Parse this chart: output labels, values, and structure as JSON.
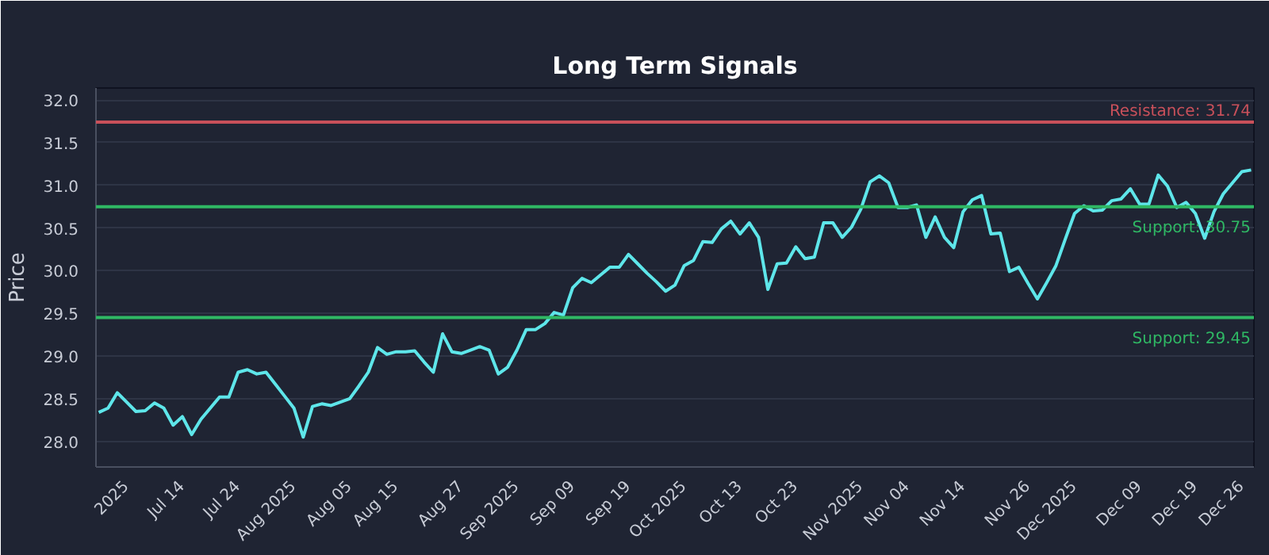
{
  "chart_data": {
    "type": "line",
    "title": "Long Term Signals",
    "ylabel": "Price",
    "categories": [
      null,
      null,
      null,
      "2025",
      null,
      null,
      null,
      null,
      null,
      "Jul 14",
      null,
      null,
      null,
      null,
      null,
      "Jul 24",
      null,
      null,
      null,
      null,
      null,
      "Aug 2025",
      null,
      null,
      null,
      null,
      null,
      "Aug 05",
      null,
      null,
      null,
      null,
      "Aug 15",
      null,
      null,
      null,
      null,
      null,
      null,
      "Aug 27",
      null,
      null,
      null,
      null,
      null,
      "Sep 2025",
      null,
      null,
      null,
      null,
      null,
      "Sep 09",
      null,
      null,
      null,
      null,
      null,
      "Sep 19",
      null,
      null,
      null,
      null,
      null,
      "Oct 2025",
      null,
      null,
      null,
      null,
      null,
      "Oct 13",
      null,
      null,
      null,
      null,
      null,
      "Oct 23",
      null,
      null,
      null,
      null,
      null,
      null,
      "Nov 2025",
      null,
      null,
      null,
      null,
      "Nov 04",
      null,
      null,
      null,
      null,
      null,
      "Nov 14",
      null,
      null,
      null,
      null,
      null,
      null,
      "Nov 26",
      null,
      null,
      null,
      null,
      "Dec 2025",
      null,
      null,
      null,
      null,
      null,
      null,
      "Dec 09",
      null,
      null,
      null,
      null,
      null,
      "Dec 19",
      null,
      null,
      null,
      null,
      "Dec 26",
      null
    ],
    "series": [
      {
        "color": "#5ee6ea",
        "values": [
          28.34,
          28.39,
          28.57,
          28.46,
          28.35,
          28.36,
          28.45,
          28.39,
          28.19,
          28.29,
          28.08,
          28.26,
          28.39,
          28.52,
          28.52,
          28.81,
          28.84,
          28.79,
          28.81,
          28.67,
          28.53,
          28.39,
          28.05,
          28.41,
          28.44,
          28.42,
          28.46,
          28.5,
          28.65,
          28.81,
          29.1,
          29.02,
          29.05,
          29.05,
          29.06,
          28.93,
          28.81,
          29.26,
          29.05,
          29.03,
          29.07,
          29.11,
          29.07,
          28.79,
          28.87,
          29.07,
          29.31,
          29.31,
          29.38,
          29.51,
          29.48,
          29.8,
          29.91,
          29.86,
          29.95,
          30.04,
          30.04,
          30.19,
          30.08,
          29.97,
          29.87,
          29.76,
          29.83,
          30.06,
          30.12,
          30.34,
          30.33,
          30.49,
          30.58,
          30.43,
          30.56,
          30.39,
          29.78,
          30.08,
          30.09,
          30.28,
          30.14,
          30.16,
          30.56,
          30.56,
          30.39,
          30.51,
          30.72,
          31.04,
          31.11,
          31.03,
          30.74,
          30.74,
          30.77,
          30.39,
          30.63,
          30.39,
          30.27,
          30.69,
          30.83,
          30.88,
          30.43,
          30.44,
          29.99,
          30.04,
          29.85,
          29.67,
          29.86,
          30.06,
          30.37,
          30.67,
          30.76,
          30.7,
          30.71,
          30.82,
          30.84,
          30.96,
          30.78,
          30.78,
          31.12,
          30.99,
          30.74,
          30.8,
          30.67,
          30.38,
          30.69,
          30.9,
          31.03,
          31.16,
          31.18
        ]
      }
    ],
    "ylim": [
      27.7,
      32.14
    ],
    "yticks": [
      {
        "value": 28,
        "label": "28.0"
      },
      28.5,
      {
        "value": 29,
        "label": "29.0"
      },
      29.5,
      {
        "value": 30,
        "label": "30.0"
      },
      30.5,
      {
        "value": 31,
        "label": "31.0"
      },
      31.5,
      {
        "value": 32,
        "label": "32.0"
      }
    ],
    "ref_lines": [
      {
        "axis": "y",
        "value": 31.74,
        "label": "Resistance: 31.74",
        "color": "#c8505a"
      },
      {
        "axis": "y",
        "value": 30.75,
        "label": "Support: 30.75",
        "color": "#2fb864"
      },
      {
        "axis": "y",
        "value": 29.45,
        "label": "Support: 29.45",
        "color": "#2fb864"
      }
    ],
    "grid": "y",
    "line_style": "solid",
    "marker": "none"
  }
}
